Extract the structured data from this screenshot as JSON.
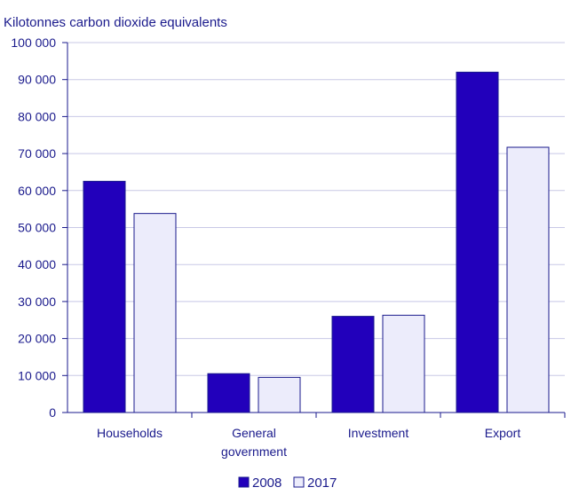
{
  "chart_data": {
    "type": "bar",
    "ylabel": "Kilotonnes carbon dioxide equivalents",
    "xlabel": "",
    "categories": [
      [
        "Households"
      ],
      [
        "General",
        "government"
      ],
      [
        "Investment"
      ],
      [
        "Export"
      ]
    ],
    "series": [
      {
        "name": "2008",
        "values": [
          62500,
          10500,
          26000,
          92000
        ],
        "color": "#2200bb"
      },
      {
        "name": "2017",
        "values": [
          53800,
          9500,
          26300,
          71700
        ],
        "color": "#ececfb"
      }
    ],
    "ylim": [
      0,
      100000
    ],
    "yticks": [
      0,
      10000,
      20000,
      30000,
      40000,
      50000,
      60000,
      70000,
      80000,
      90000,
      100000
    ],
    "ytick_labels": [
      "0",
      "10 000",
      "20 000",
      "30 000",
      "40 000",
      "50 000",
      "60 000",
      "70 000",
      "80 000",
      "90 000",
      "100 000"
    ],
    "grid": true,
    "legend_position": "bottom-center",
    "colors": {
      "axis": "#1a1a8c",
      "grid": "#c8c8e6",
      "bar_stroke": "#1a1a8c"
    }
  }
}
